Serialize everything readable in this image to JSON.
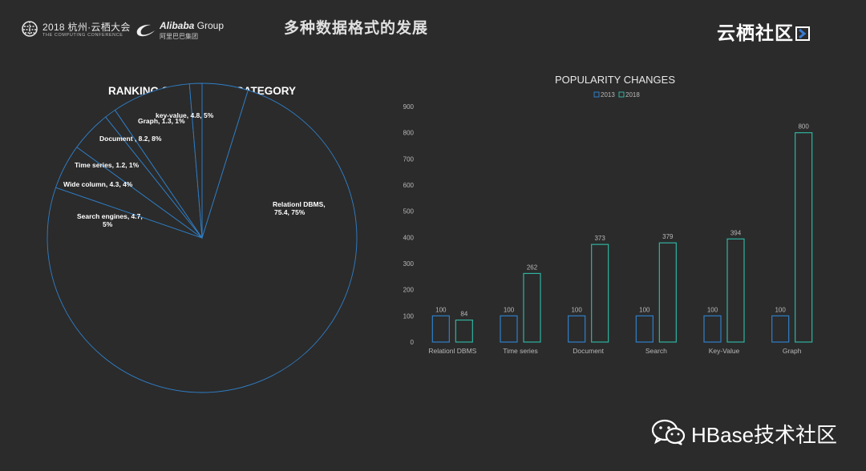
{
  "header": {
    "conference_line1": "2018 杭州·云栖大会",
    "conference_line2": "THE COMPUTING CONFERENCE",
    "group_brand_bold": "Alibaba",
    "group_brand_rest": " Group",
    "group_brand_cn": "阿里巴巴集团",
    "title": "多种数据格式的发展",
    "brand": "云栖社区"
  },
  "colors": {
    "background": "#2b2b2b",
    "series_2013": "#2f7fc8",
    "series_2018": "#2fb3a0",
    "pie_stroke": "#2f7fc8",
    "axis_text": "#b8b8b8"
  },
  "watermark": {
    "text": "HBase技术社区",
    "icon": "wechat-icon"
  },
  "chart_data": [
    {
      "type": "pie",
      "title": "RANKING SCORES PER CATEGORY",
      "slices": [
        {
          "label": "key-value, 4.8, 5%",
          "value": 4.8
        },
        {
          "label": "Relationl DBMS, 75.4, 75%",
          "value": 75.4
        },
        {
          "label": "Search engines, 4.7, 5%",
          "value": 4.7
        },
        {
          "label": "Wide column, 4.3, 4%",
          "value": 4.3
        },
        {
          "label": "Time series, 1.2, 1%",
          "value": 1.2
        },
        {
          "label": "Document , 8.2, 8%",
          "value": 8.2
        },
        {
          "label": "Graph, 1.3, 1%",
          "value": 1.3
        }
      ]
    },
    {
      "type": "bar",
      "title": "POPULARITY CHANGES",
      "categories": [
        "Relationl DBMS",
        "Time series",
        "Document",
        "Search",
        "Key-Value",
        "Graph"
      ],
      "series": [
        {
          "name": "2013",
          "values": [
            100,
            100,
            100,
            100,
            100,
            100
          ]
        },
        {
          "name": "2018",
          "values": [
            84,
            262,
            373,
            379,
            394,
            800
          ]
        }
      ],
      "ylim": [
        0,
        900
      ],
      "yticks": [
        0,
        100,
        200,
        300,
        400,
        500,
        600,
        700,
        800,
        900
      ],
      "grid": false,
      "legend": "top-center"
    }
  ]
}
